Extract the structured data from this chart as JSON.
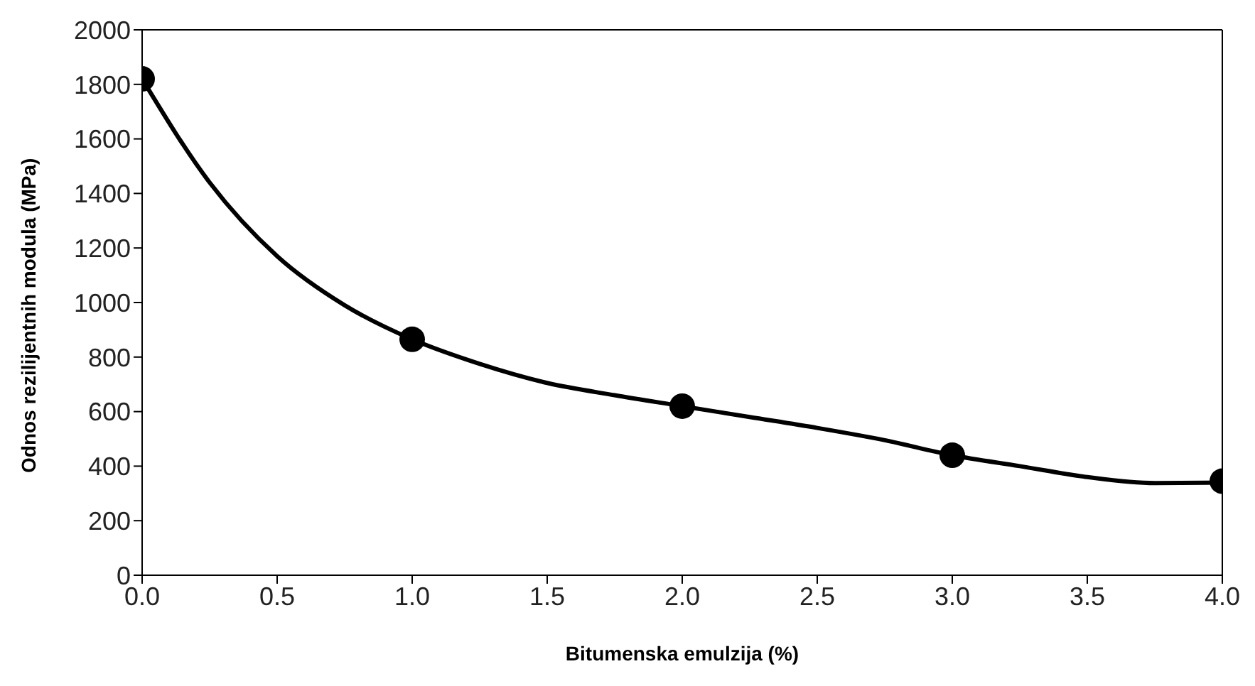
{
  "chart_data": {
    "type": "scatter",
    "xlabel": "Bitumenska emulzija (%)",
    "ylabel": "Odnos rezilijentnih modula (MPa)",
    "xlim": [
      0,
      4
    ],
    "xticks": [
      {
        "value": 0,
        "label": "0.0"
      },
      {
        "value": 0.5,
        "label": "0.5"
      },
      {
        "value": 1,
        "label": "1.0"
      },
      {
        "value": 1.5,
        "label": "1.5"
      },
      {
        "value": 2,
        "label": "2.0"
      },
      {
        "value": 2.5,
        "label": "2.5"
      },
      {
        "value": 3,
        "label": "3.0"
      },
      {
        "value": 3.5,
        "label": "3.5"
      },
      {
        "value": 4,
        "label": "4.0"
      }
    ],
    "ylim": [
      0,
      2000
    ],
    "yticks": [
      0,
      200,
      400,
      600,
      800,
      1000,
      1200,
      1400,
      1600,
      1800,
      2000
    ],
    "grid": false,
    "legend": false,
    "series": [
      {
        "type": "line",
        "color": "#000000",
        "marker": "none",
        "line_style": "solid",
        "x": [
          0,
          0.25,
          0.5,
          0.75,
          1,
          1.25,
          1.5,
          1.75,
          2,
          2.25,
          2.5,
          2.75,
          3,
          3.25,
          3.5,
          3.75,
          4
        ],
        "values": [
          1820,
          1440,
          1170,
          990,
          865,
          775,
          705,
          660,
          620,
          580,
          540,
          495,
          440,
          400,
          360,
          338,
          340
        ]
      },
      {
        "type": "scatter",
        "color": "#000000",
        "marker": "circle",
        "x": [
          0,
          1,
          2,
          3,
          4
        ],
        "values": [
          1820,
          865,
          620,
          440,
          345
        ]
      }
    ]
  }
}
